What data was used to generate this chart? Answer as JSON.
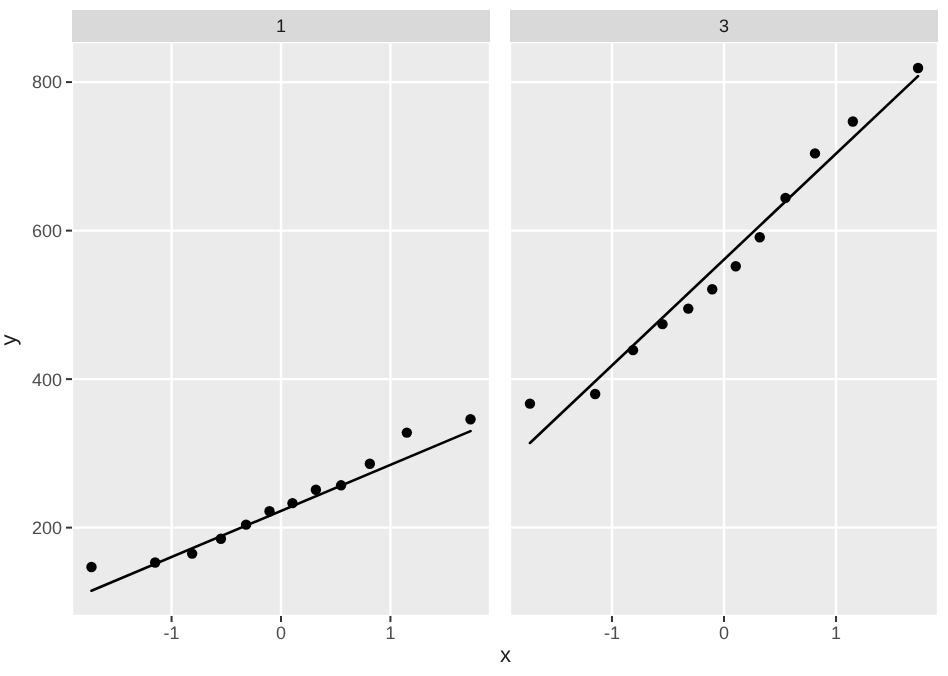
{
  "chart_data": [
    {
      "type": "scatter",
      "title": "1",
      "xlabel": "x",
      "ylabel": "y",
      "x": [
        -1.732,
        -1.15,
        -0.812,
        -0.549,
        -0.319,
        -0.105,
        0.105,
        0.319,
        0.549,
        0.812,
        1.15,
        1.732
      ],
      "series": [
        {
          "color": "#000000",
          "values": [
            147,
            153,
            165,
            185,
            204,
            222,
            233,
            251,
            257,
            286,
            328,
            346
          ]
        },
        {
          "type": "line",
          "color": "#000000",
          "marker": "none",
          "values": [
            115,
            null,
            null,
            null,
            null,
            null,
            null,
            null,
            null,
            null,
            null,
            330
          ]
        }
      ],
      "xlim": [
        -1.91,
        1.91
      ],
      "ylim": [
        81,
        854
      ],
      "xticks": [
        -1,
        0,
        1
      ],
      "yticks": [
        200,
        400,
        600,
        800
      ],
      "grid": true,
      "marker": "circle"
    },
    {
      "type": "scatter",
      "title": "3",
      "x": [
        -1.732,
        -1.15,
        -0.812,
        -0.549,
        -0.319,
        -0.105,
        0.105,
        0.319,
        0.549,
        0.812,
        1.15,
        1.732
      ],
      "series": [
        {
          "color": "#000000",
          "values": [
            367,
            380,
            439,
            474,
            495,
            521,
            552,
            591,
            644,
            704,
            747,
            819
          ]
        },
        {
          "type": "line",
          "color": "#000000",
          "marker": "none",
          "values": [
            314,
            null,
            null,
            null,
            null,
            null,
            null,
            null,
            null,
            null,
            null,
            808
          ]
        }
      ],
      "xlim": [
        -1.91,
        1.91
      ],
      "ylim": [
        81,
        854
      ],
      "xticks": [
        -1,
        0,
        1
      ],
      "yticks": [
        200,
        400,
        600,
        800
      ],
      "grid": true,
      "marker": "circle",
      "tick_labels": "x"
    }
  ]
}
